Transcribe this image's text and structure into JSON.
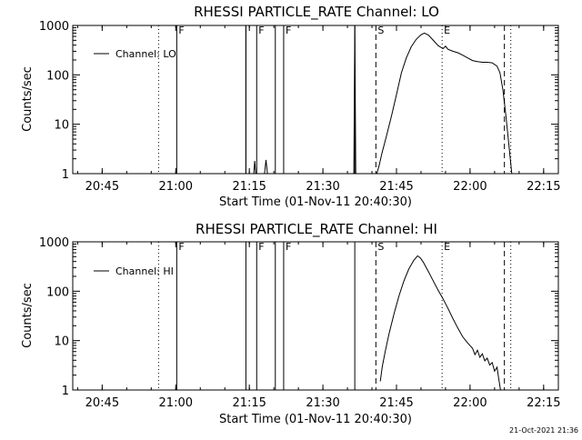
{
  "timestamp": "21-Oct-2021 21:36",
  "chart_data": [
    {
      "type": "line",
      "title": "RHESSI PARTICLE_RATE Channel: LO",
      "xlabel": "Start Time (01-Nov-11 20:40:30)",
      "ylabel": "Counts/sec",
      "legend": "Channel: LO",
      "legend_position": "top-left",
      "xlim_minutes": [
        -1.5,
        97.5
      ],
      "x_tick_labels": [
        "20:45",
        "21:00",
        "21:15",
        "21:30",
        "21:45",
        "22:00",
        "22:15"
      ],
      "x_tick_minutes": [
        4.5,
        19.5,
        34.5,
        49.5,
        64.5,
        79.5,
        94.5
      ],
      "y_scale": "log",
      "ylim": [
        1,
        1000
      ],
      "y_tick_labels": [
        "1",
        "10",
        "100",
        "1000"
      ],
      "y_tick_values": [
        1,
        10,
        100,
        1000
      ],
      "flag_lines": [
        {
          "label": "",
          "minute": 16.0,
          "style": "dotted"
        },
        {
          "label": "F",
          "minute": 19.7,
          "style": "solid"
        },
        {
          "label": "",
          "minute": 33.8,
          "style": "solid"
        },
        {
          "label": "F",
          "minute": 36.0,
          "style": "solid"
        },
        {
          "label": "",
          "minute": 39.8,
          "style": "solid"
        },
        {
          "label": "F",
          "minute": 41.5,
          "style": "solid"
        },
        {
          "label": "",
          "minute": 56.0,
          "style": "solid"
        },
        {
          "label": "S",
          "minute": 60.3,
          "style": "dashed"
        },
        {
          "label": "E",
          "minute": 73.8,
          "style": "dotted"
        },
        {
          "label": "",
          "minute": 86.5,
          "style": "dashed"
        },
        {
          "label": "",
          "minute": 87.8,
          "style": "dotted"
        }
      ],
      "series": [
        {
          "name": "Channel: LO",
          "segments": [
            [
              [
                33.8,
                1
              ],
              [
                33.8,
                1000
              ]
            ],
            [
              [
                35.4,
                1
              ],
              [
                35.6,
                1.8
              ],
              [
                35.8,
                1
              ]
            ],
            [
              [
                37.6,
                1
              ],
              [
                37.9,
                1.9
              ],
              [
                38.2,
                1
              ]
            ],
            [
              [
                55.8,
                1
              ],
              [
                56.0,
                1000
              ],
              [
                56.2,
                1
              ]
            ],
            [
              [
                60.5,
                1
              ],
              [
                61.0,
                1.5
              ],
              [
                61.5,
                2.5
              ],
              [
                62.5,
                6
              ],
              [
                63.5,
                15
              ],
              [
                64.5,
                40
              ],
              [
                65.5,
                110
              ],
              [
                66.5,
                220
              ],
              [
                67.5,
                370
              ],
              [
                68.5,
                520
              ],
              [
                69.5,
                650
              ],
              [
                70.2,
                700
              ],
              [
                71.0,
                640
              ],
              [
                72.0,
                500
              ],
              [
                73.0,
                390
              ],
              [
                74.0,
                340
              ],
              [
                74.5,
                380
              ],
              [
                75.0,
                330
              ],
              [
                76.0,
                300
              ],
              [
                77.0,
                280
              ],
              [
                78.0,
                250
              ],
              [
                79.0,
                220
              ],
              [
                80.0,
                195
              ],
              [
                81.0,
                185
              ],
              [
                82.0,
                180
              ],
              [
                83.0,
                180
              ],
              [
                84.0,
                175
              ],
              [
                85.0,
                150
              ],
              [
                85.6,
                110
              ],
              [
                86.2,
                50
              ],
              [
                86.8,
                15
              ],
              [
                87.4,
                4
              ],
              [
                88.0,
                1
              ]
            ]
          ]
        }
      ]
    },
    {
      "type": "line",
      "title": "RHESSI PARTICLE_RATE Channel: HI",
      "xlabel": "Start Time (01-Nov-11 20:40:30)",
      "ylabel": "Counts/sec",
      "legend": "Channel: HI",
      "legend_position": "top-left",
      "xlim_minutes": [
        -1.5,
        97.5
      ],
      "x_tick_labels": [
        "20:45",
        "21:00",
        "21:15",
        "21:30",
        "21:45",
        "22:00",
        "22:15"
      ],
      "x_tick_minutes": [
        4.5,
        19.5,
        34.5,
        49.5,
        64.5,
        79.5,
        94.5
      ],
      "y_scale": "log",
      "ylim": [
        1,
        1000
      ],
      "y_tick_labels": [
        "1",
        "10",
        "100",
        "1000"
      ],
      "y_tick_values": [
        1,
        10,
        100,
        1000
      ],
      "flag_lines": [
        {
          "label": "",
          "minute": 16.0,
          "style": "dotted"
        },
        {
          "label": "F",
          "minute": 19.7,
          "style": "solid"
        },
        {
          "label": "",
          "minute": 33.8,
          "style": "solid"
        },
        {
          "label": "F",
          "minute": 36.0,
          "style": "solid"
        },
        {
          "label": "",
          "minute": 39.8,
          "style": "solid"
        },
        {
          "label": "F",
          "minute": 41.5,
          "style": "solid"
        },
        {
          "label": "",
          "minute": 56.0,
          "style": "solid"
        },
        {
          "label": "S",
          "minute": 60.3,
          "style": "dashed"
        },
        {
          "label": "E",
          "minute": 73.8,
          "style": "dotted"
        },
        {
          "label": "",
          "minute": 86.5,
          "style": "dashed"
        },
        {
          "label": "",
          "minute": 87.8,
          "style": "dotted"
        }
      ],
      "series": [
        {
          "name": "Channel: HI",
          "segments": [
            [
              [
                61.2,
                1.5
              ],
              [
                61.6,
                3
              ],
              [
                62.2,
                6
              ],
              [
                63.0,
                14
              ],
              [
                64.0,
                35
              ],
              [
                65.0,
                80
              ],
              [
                66.0,
                160
              ],
              [
                67.0,
                280
              ],
              [
                68.0,
                420
              ],
              [
                68.8,
                520
              ],
              [
                69.4,
                470
              ],
              [
                70.0,
                380
              ],
              [
                71.0,
                250
              ],
              [
                72.0,
                160
              ],
              [
                73.0,
                105
              ],
              [
                74.0,
                70
              ],
              [
                75.0,
                45
              ],
              [
                76.0,
                28
              ],
              [
                77.0,
                18
              ],
              [
                78.0,
                12
              ],
              [
                79.0,
                9
              ],
              [
                80.0,
                7
              ],
              [
                80.5,
                5.2
              ],
              [
                81.0,
                6.4
              ],
              [
                81.5,
                4.6
              ],
              [
                82.0,
                5.4
              ],
              [
                82.5,
                3.9
              ],
              [
                83.0,
                4.4
              ],
              [
                83.5,
                3.2
              ],
              [
                84.0,
                3.6
              ],
              [
                84.5,
                2.4
              ],
              [
                85.0,
                2.9
              ],
              [
                85.3,
                1.8
              ],
              [
                85.7,
                1
              ]
            ]
          ]
        }
      ]
    }
  ]
}
